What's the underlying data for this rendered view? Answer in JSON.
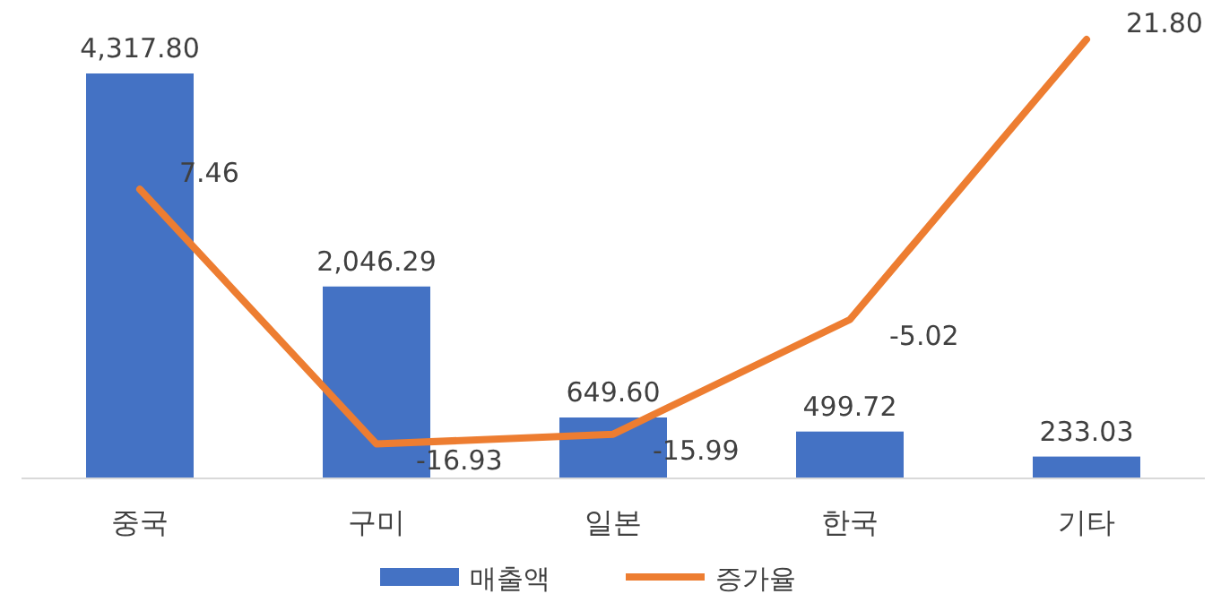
{
  "chart_data": {
    "type": "bar",
    "categories": [
      "중국",
      "구미",
      "일본",
      "한국",
      "기타"
    ],
    "series": [
      {
        "name": "매출액",
        "color": "#4472c4",
        "values": [
          4317.8,
          2046.29,
          649.6,
          499.72,
          233.03
        ],
        "value_labels": [
          "4,317.80",
          "2,046.29",
          "649.60",
          "499.72",
          "233.03"
        ]
      },
      {
        "name": "증가율",
        "type": "line",
        "axis": "y2",
        "color": "#ed7d31",
        "values": [
          7.46,
          -16.93,
          -15.99,
          -5.02,
          21.8
        ],
        "value_labels": [
          "7.46",
          "-16.93",
          "-15.99",
          "-5.02",
          "21.80"
        ]
      }
    ],
    "legend": "bottom"
  }
}
